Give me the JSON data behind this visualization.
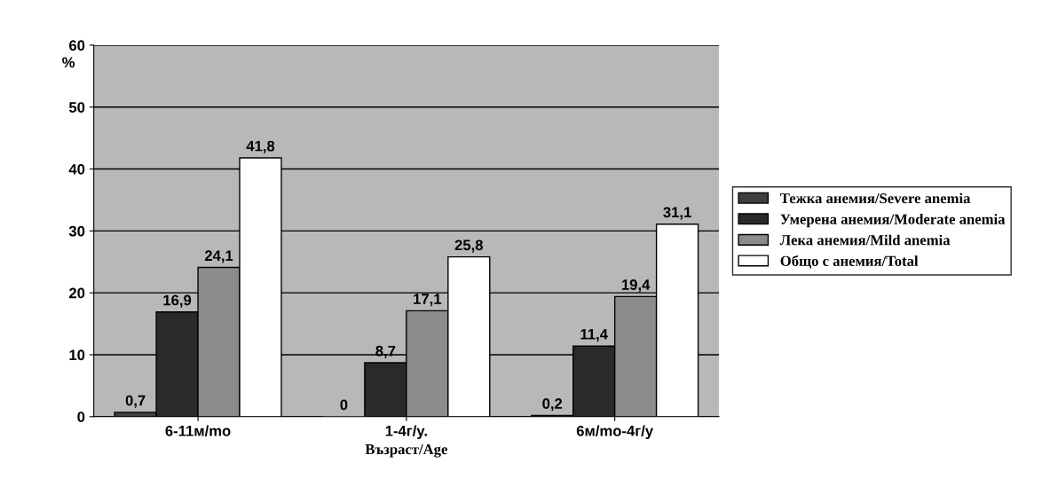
{
  "chart_data": {
    "type": "bar",
    "categories": [
      "6-11м/mo",
      "1-4г/y.",
      "6м/mo-4г/y"
    ],
    "series": [
      {
        "name": "Тежка анемия/Severe anemia",
        "color": "#404040",
        "values": [
          0.7,
          0,
          0.2
        ],
        "value_labels": [
          "0,7",
          "0",
          "0,2"
        ]
      },
      {
        "name": "Умерена анемия/Moderate anemia",
        "color": "#2a2a2a",
        "values": [
          16.9,
          8.7,
          11.4
        ],
        "value_labels": [
          "16,9",
          "8,7",
          "11,4"
        ]
      },
      {
        "name": "Лека анемия/Mild anemia",
        "color": "#8c8c8c",
        "values": [
          24.1,
          17.1,
          19.4
        ],
        "value_labels": [
          "24,1",
          "17,1",
          "19,4"
        ]
      },
      {
        "name": "Общо с анемия/Total",
        "color": "#ffffff",
        "values": [
          41.8,
          25.8,
          31.1
        ],
        "value_labels": [
          "41,8",
          "25,8",
          "31,1"
        ]
      }
    ],
    "xlabel": "Възраст/Age",
    "ylabel": "%",
    "ylim": [
      0,
      60
    ],
    "yticks": [
      0,
      10,
      20,
      30,
      40,
      50,
      60
    ],
    "grid": "y",
    "legend": "right"
  }
}
